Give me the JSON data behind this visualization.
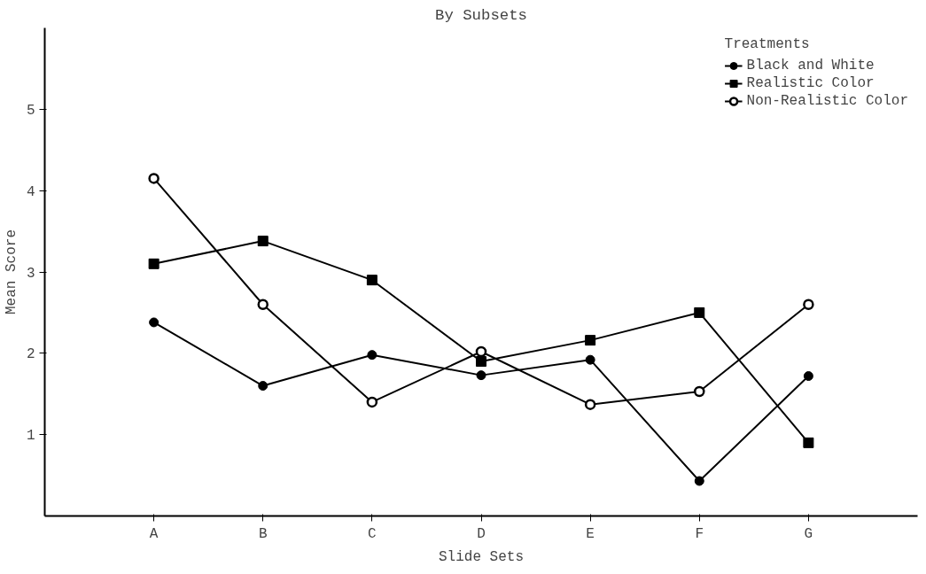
{
  "chart_data": {
    "type": "line",
    "title": "By Subsets",
    "xlabel": "Slide Sets",
    "ylabel": "Mean Score",
    "legend_title": "Treatments",
    "legend": "top right",
    "grid": false,
    "categories": [
      "A",
      "B",
      "C",
      "D",
      "E",
      "F",
      "G"
    ],
    "ylim": [
      0,
      6
    ],
    "yticks": [
      1,
      2,
      3,
      4,
      5
    ],
    "series": [
      {
        "name": "Black and White",
        "color": "#000000",
        "marker": "circle",
        "values": [
          2.38,
          1.6,
          1.98,
          1.73,
          1.92,
          0.43,
          1.72
        ]
      },
      {
        "name": "Realistic Color",
        "color": "#000000",
        "marker": "square",
        "values": [
          3.1,
          3.38,
          2.9,
          1.9,
          2.16,
          2.5,
          0.9
        ]
      },
      {
        "name": "Non-Realistic Color",
        "color": "#000000",
        "marker": "circle_open",
        "values": [
          4.15,
          2.6,
          1.4,
          2.02,
          1.37,
          1.53,
          2.6
        ]
      }
    ]
  }
}
